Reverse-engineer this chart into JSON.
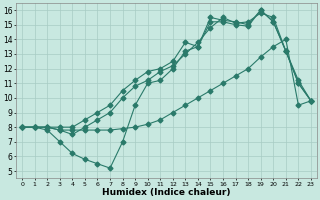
{
  "xlabel": "Humidex (Indice chaleur)",
  "ylabel": "",
  "xlim": [
    -0.5,
    23.5
  ],
  "ylim": [
    4.5,
    16.5
  ],
  "xticks": [
    0,
    1,
    2,
    3,
    4,
    5,
    6,
    7,
    8,
    9,
    10,
    11,
    12,
    13,
    14,
    15,
    16,
    17,
    18,
    19,
    20,
    21,
    22,
    23
  ],
  "yticks": [
    5,
    6,
    7,
    8,
    9,
    10,
    11,
    12,
    13,
    14,
    15,
    16
  ],
  "bg_color": "#c8e8e0",
  "line_color": "#2a7a6a",
  "grid_color": "#a8ccc4",
  "lines": [
    {
      "x": [
        0,
        1,
        2,
        3,
        4,
        5,
        6,
        7,
        8,
        9,
        10,
        11,
        12,
        13,
        14,
        15,
        16,
        17,
        18,
        19,
        20,
        21,
        22,
        23
      ],
      "y": [
        8.0,
        8.0,
        8.0,
        8.0,
        8.0,
        8.5,
        9.0,
        9.5,
        10.5,
        11.2,
        11.8,
        12.0,
        12.5,
        13.8,
        13.5,
        15.5,
        15.3,
        15.2,
        15.0,
        16.0,
        15.2,
        13.2,
        11.0,
        9.8
      ]
    },
    {
      "x": [
        0,
        1,
        2,
        3,
        4,
        5,
        6,
        7,
        8,
        9,
        10,
        11,
        12,
        13,
        14,
        15,
        16,
        17,
        18,
        19,
        20,
        21,
        22,
        23
      ],
      "y": [
        8.0,
        8.0,
        8.0,
        7.8,
        7.5,
        8.0,
        8.5,
        9.0,
        10.0,
        10.8,
        11.2,
        11.8,
        12.2,
        13.0,
        13.8,
        14.8,
        15.5,
        15.1,
        15.2,
        15.8,
        15.5,
        13.2,
        11.2,
        9.8
      ]
    },
    {
      "x": [
        0,
        1,
        2,
        3,
        4,
        5,
        6,
        7,
        8,
        9,
        10,
        11,
        12,
        13,
        14,
        15,
        16,
        17,
        18,
        19,
        20,
        21,
        22,
        23
      ],
      "y": [
        8.0,
        8.0,
        7.8,
        7.0,
        6.2,
        5.8,
        5.5,
        5.2,
        7.0,
        9.5,
        11.0,
        11.2,
        12.0,
        13.2,
        13.5,
        15.2,
        15.2,
        15.0,
        14.9,
        16.0,
        15.2,
        13.2,
        11.0,
        9.8
      ]
    },
    {
      "x": [
        0,
        1,
        2,
        3,
        4,
        5,
        6,
        7,
        8,
        9,
        10,
        11,
        12,
        13,
        14,
        15,
        16,
        17,
        18,
        19,
        20,
        21,
        22,
        23
      ],
      "y": [
        8.0,
        8.0,
        8.0,
        7.8,
        7.8,
        7.8,
        7.8,
        7.8,
        7.9,
        8.0,
        8.2,
        8.5,
        9.0,
        9.5,
        10.0,
        10.5,
        11.0,
        11.5,
        12.0,
        12.8,
        13.5,
        14.0,
        9.5,
        9.8
      ]
    }
  ],
  "marker": "D",
  "markersize": 2.5,
  "linewidth": 0.8
}
